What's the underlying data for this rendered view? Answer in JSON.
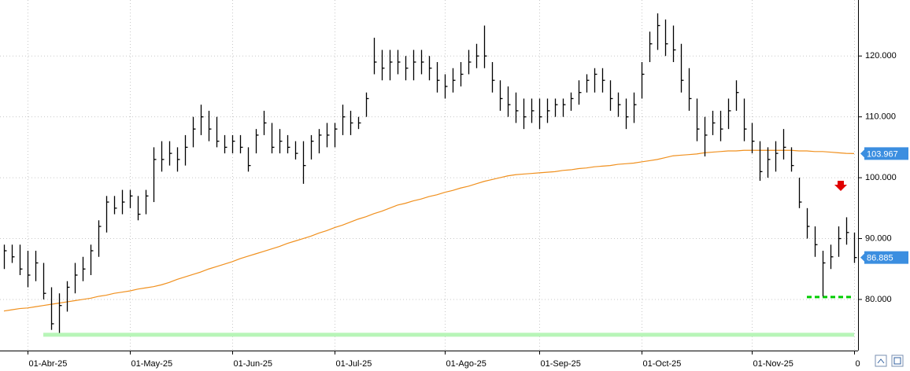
{
  "chart_data": {
    "type": "ohlc",
    "categories": [
      null,
      null,
      null,
      "01-Abr-25",
      null,
      null,
      null,
      null,
      null,
      null,
      null,
      null,
      null,
      null,
      null,
      null,
      "01-May-25",
      null,
      null,
      null,
      null,
      null,
      null,
      null,
      null,
      null,
      null,
      null,
      null,
      "01-Jun-25",
      null,
      null,
      null,
      null,
      null,
      null,
      null,
      null,
      null,
      null,
      null,
      null,
      "01-Jul-25",
      null,
      null,
      null,
      null,
      null,
      null,
      null,
      null,
      null,
      null,
      null,
      null,
      null,
      "01-Ago-25",
      null,
      null,
      null,
      null,
      null,
      null,
      null,
      null,
      null,
      null,
      null,
      "01-Sep-25",
      null,
      null,
      null,
      null,
      null,
      null,
      null,
      null,
      null,
      null,
      null,
      null,
      "01-Oct-25",
      null,
      null,
      null,
      null,
      null,
      null,
      null,
      null,
      null,
      null,
      null,
      null,
      null,
      "01-Nov-25",
      null,
      null,
      null,
      null,
      null,
      null,
      null,
      null,
      null,
      null,
      null,
      null,
      "0"
    ],
    "high": [
      89,
      89,
      89,
      88,
      88,
      86,
      82,
      81,
      83,
      86,
      87,
      89,
      93,
      97,
      97,
      98,
      98,
      97,
      98,
      105,
      106,
      106,
      105,
      107,
      110,
      112,
      111,
      110,
      107,
      107,
      107,
      105,
      108,
      111,
      109,
      108,
      107,
      106,
      106,
      107,
      108,
      109,
      109,
      112,
      111,
      110,
      114,
      123,
      121,
      121,
      121,
      120,
      121,
      121,
      120,
      119,
      117,
      118,
      119,
      121,
      122,
      125,
      119,
      116,
      115,
      114,
      113,
      113,
      113,
      113,
      113,
      113,
      114,
      116,
      117,
      118,
      118,
      116,
      114,
      113,
      114,
      119,
      124,
      127,
      126,
      125,
      122,
      118,
      113,
      110,
      111,
      111,
      113,
      116,
      113,
      109,
      106,
      105,
      106,
      108,
      105,
      100,
      95,
      92,
      88,
      89,
      92,
      93.5,
      91
    ],
    "low": [
      85,
      86,
      84,
      82,
      83,
      80,
      75,
      74.5,
      78,
      81,
      83,
      84,
      87,
      91,
      94,
      94,
      95,
      93,
      94,
      96,
      101,
      102,
      101,
      102,
      105,
      107,
      106,
      105,
      104,
      104,
      104,
      101,
      104,
      107,
      104,
      104,
      104,
      103,
      99,
      103,
      104,
      105,
      105,
      107,
      107,
      108,
      110,
      117,
      116,
      116,
      117,
      116,
      116,
      117,
      116,
      114,
      113,
      114,
      115,
      117,
      118,
      118,
      114,
      111,
      110,
      109,
      108,
      109,
      108,
      109,
      110,
      110,
      111,
      112,
      114,
      114,
      114,
      111,
      110,
      108,
      109,
      113,
      119,
      121,
      120,
      119,
      114,
      111,
      106,
      103.5,
      107,
      106,
      108,
      111,
      106,
      104,
      99.5,
      100,
      101,
      103,
      101,
      95,
      90,
      87,
      80.5,
      85,
      87,
      89,
      86
    ],
    "close": [
      88,
      87,
      85,
      84,
      86,
      81,
      76,
      79,
      82,
      84,
      85,
      88,
      92,
      96,
      95,
      96,
      97,
      94,
      97,
      103,
      103,
      104,
      103,
      105,
      108,
      110,
      108,
      106,
      105,
      106,
      105,
      102,
      107,
      109,
      105,
      106,
      105,
      104,
      102,
      106,
      107,
      107,
      108,
      110,
      109,
      109,
      113,
      119,
      118,
      119,
      119,
      118,
      119,
      119,
      118,
      116,
      115,
      116,
      117,
      119,
      120,
      120,
      116,
      113,
      112,
      111,
      110,
      111,
      110,
      111,
      112,
      112,
      113,
      114,
      116,
      117,
      116,
      113,
      112,
      110,
      112,
      117,
      122,
      125,
      122,
      121,
      116,
      113,
      108,
      107,
      109,
      108,
      111,
      114,
      108,
      106,
      101,
      103,
      104,
      105,
      102,
      96,
      92,
      89,
      86,
      87,
      90,
      91,
      86.885
    ],
    "bar_color": "#000000",
    "moving_average": {
      "color": "#f0901e",
      "values": [
        78.1,
        78.3,
        78.5,
        78.6,
        78.8,
        79.0,
        79.2,
        79.4,
        79.6,
        79.8,
        80.0,
        80.2,
        80.5,
        80.7,
        81.0,
        81.2,
        81.4,
        81.7,
        81.9,
        82.1,
        82.4,
        82.8,
        83.3,
        83.7,
        84.1,
        84.5,
        85.0,
        85.4,
        85.8,
        86.2,
        86.7,
        87.1,
        87.5,
        87.9,
        88.3,
        88.7,
        89.2,
        89.6,
        90.0,
        90.4,
        90.9,
        91.3,
        91.8,
        92.2,
        92.7,
        93.2,
        93.6,
        94.1,
        94.5,
        95.0,
        95.5,
        95.8,
        96.2,
        96.5,
        96.9,
        97.2,
        97.6,
        97.9,
        98.3,
        98.6,
        99.0,
        99.4,
        99.7,
        100.0,
        100.3,
        100.5,
        100.6,
        100.7,
        100.8,
        100.9,
        101.0,
        101.2,
        101.3,
        101.5,
        101.6,
        101.8,
        101.9,
        102.0,
        102.2,
        102.3,
        102.4,
        102.6,
        102.8,
        103.0,
        103.3,
        103.6,
        103.7,
        103.8,
        103.9,
        104.1,
        104.2,
        104.3,
        104.4,
        104.4,
        104.5,
        104.5,
        104.5,
        104.5,
        104.5,
        104.5,
        104.5,
        104.4,
        104.4,
        104.3,
        104.3,
        104.2,
        104.1,
        104.0,
        103.967
      ]
    },
    "price_tag_color": "#3b8ee0",
    "levels": [
      {
        "value": 74.2,
        "color": "#b8f5b8"
      },
      {
        "value": 80.4,
        "color": "#00cc00"
      }
    ],
    "ylim": [
      71.6,
      129.2
    ],
    "yticks": [
      {
        "value": 80,
        "label": "80.000"
      },
      {
        "value": 90,
        "label": "90.000"
      },
      {
        "value": 100,
        "label": "100.000"
      },
      {
        "value": 110,
        "label": "110.000"
      },
      {
        "value": 120,
        "label": "120.000"
      }
    ],
    "grid": true
  }
}
